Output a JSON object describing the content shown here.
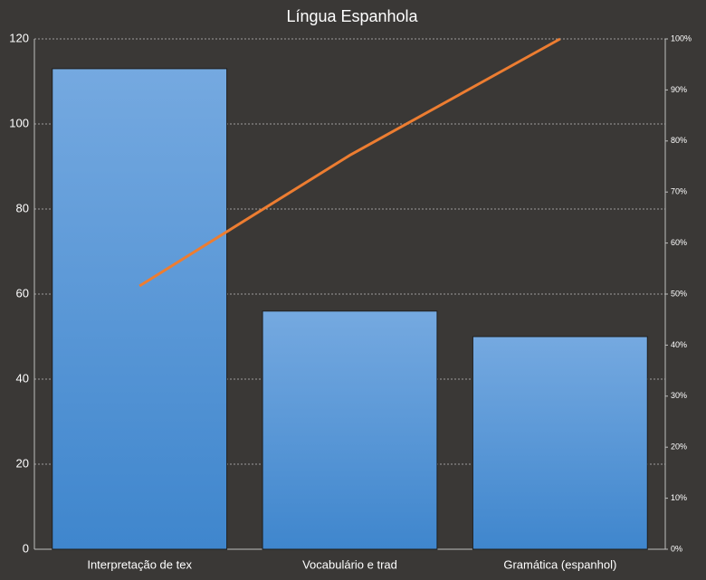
{
  "chart_data": {
    "type": "bar",
    "title": "Língua Espanhola",
    "categories": [
      "Interpretação de tex",
      "Vocabulário e trad",
      "Gramática (espanhol)"
    ],
    "series": [
      {
        "type": "bar",
        "color": "#4f92d8",
        "values": [
          113,
          56,
          50
        ]
      },
      {
        "type": "line",
        "axis": "y2",
        "color": "#ed7d31",
        "values": [
          51.6,
          77.2,
          100
        ]
      }
    ],
    "ylim": [
      0,
      120
    ],
    "yticks": [
      0,
      20,
      40,
      60,
      80,
      100,
      120
    ],
    "y2lim": [
      0,
      100
    ],
    "y2ticks": [
      {
        "value": 0,
        "label": "0%"
      },
      {
        "value": 10,
        "label": "10%"
      },
      {
        "value": 20,
        "label": "20%"
      },
      {
        "value": 30,
        "label": "30%"
      },
      {
        "value": 40,
        "label": "40%"
      },
      {
        "value": 50,
        "label": "50%"
      },
      {
        "value": 60,
        "label": "60%"
      },
      {
        "value": 70,
        "label": "70%"
      },
      {
        "value": 80,
        "label": "80%"
      },
      {
        "value": 90,
        "label": "90%"
      },
      {
        "value": 100,
        "label": "100%"
      }
    ],
    "grid": true
  }
}
